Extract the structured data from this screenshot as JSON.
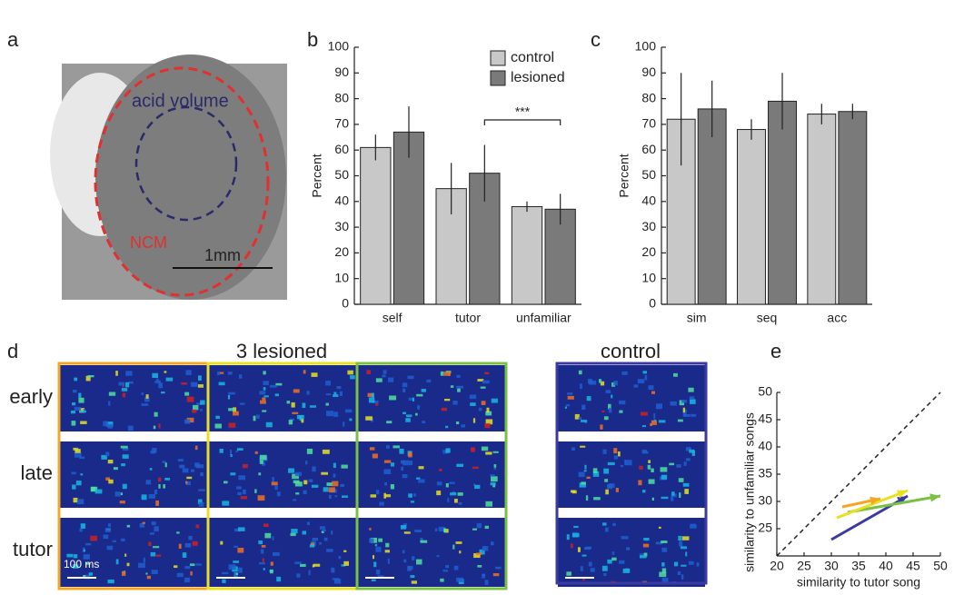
{
  "figure": {
    "letters": [
      "a",
      "b",
      "c",
      "d",
      "e"
    ],
    "panel_a": {
      "labels": [
        "acid volume",
        "NCM"
      ],
      "scale_bar": "1mm"
    },
    "panel_d": {
      "group_titles": [
        "3 lesioned",
        "control"
      ],
      "row_labels": [
        "early",
        "late",
        "tutor"
      ],
      "scale_bar": "100 ms"
    }
  },
  "chart_data": [
    {
      "type": "bar",
      "categories": [
        "self",
        "tutor",
        "unfamiliar"
      ],
      "y_label": "Percent",
      "ylim": [
        0,
        100
      ],
      "yticks": [
        0,
        10,
        20,
        30,
        40,
        50,
        60,
        70,
        80,
        90,
        100
      ],
      "legend": "upper right",
      "annotation": "***",
      "series": [
        {
          "name": "control",
          "color": "#c8c8c8",
          "values": [
            61,
            45,
            38
          ],
          "errors": [
            5,
            10,
            2
          ]
        },
        {
          "name": "lesioned",
          "color": "#7a7a7a",
          "values": [
            67,
            51,
            37
          ],
          "errors": [
            10,
            11,
            6
          ]
        }
      ]
    },
    {
      "type": "bar",
      "categories": [
        "sim",
        "seq",
        "acc"
      ],
      "y_label": "Percent",
      "ylim": [
        0,
        100
      ],
      "yticks": [
        0,
        10,
        20,
        30,
        40,
        50,
        60,
        70,
        80,
        90,
        100
      ],
      "series": [
        {
          "color": "#c8c8c8",
          "values": [
            72,
            68,
            74
          ],
          "errors": [
            18,
            4,
            4
          ]
        },
        {
          "color": "#7a7a7a",
          "values": [
            76,
            79,
            75
          ],
          "errors": [
            11,
            11,
            3
          ]
        }
      ]
    },
    {
      "type": "arrow",
      "x_label": "similarity to tutor song",
      "y_label": "similarity to unfamiliar songs",
      "xlim": [
        20,
        50
      ],
      "ylim": [
        20,
        50
      ],
      "xticks": [
        20,
        25,
        30,
        35,
        40,
        45,
        50
      ],
      "yticks": [
        25,
        30,
        35,
        40,
        45,
        50
      ],
      "series": [
        {
          "color": "#3a3aa0",
          "x": [
            30,
            44
          ],
          "values": [
            23,
            31
          ]
        },
        {
          "color": "#7ac143",
          "x": [
            33,
            50
          ],
          "values": [
            28,
            31
          ]
        },
        {
          "color": "#e8e020",
          "x": [
            31,
            44
          ],
          "values": [
            27,
            32
          ]
        },
        {
          "color": "#f5a623",
          "x": [
            32,
            39
          ],
          "values": [
            29,
            30.5
          ]
        }
      ]
    }
  ]
}
